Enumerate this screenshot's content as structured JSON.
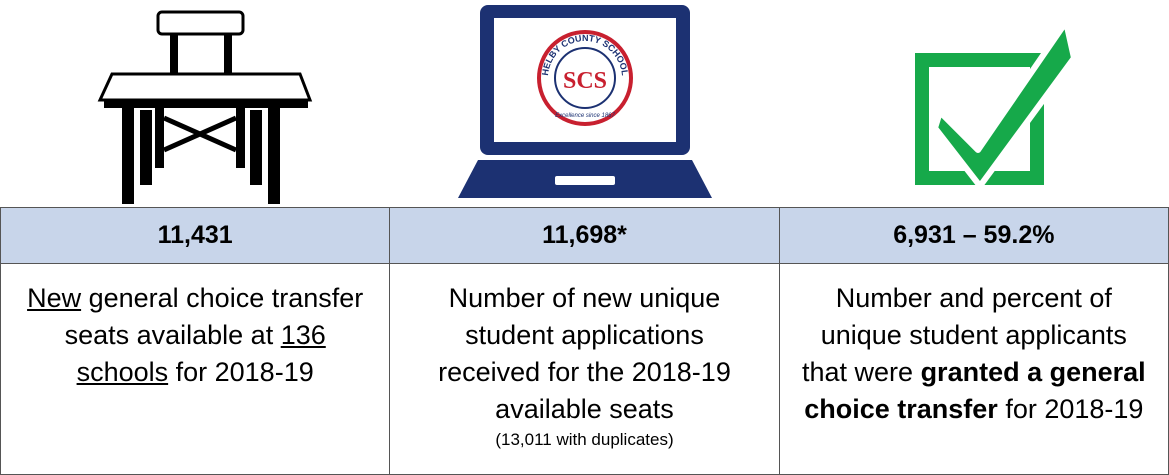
{
  "logo": {
    "ring_text": "SHELBY COUNTY SCHOOLS",
    "initials": "SCS",
    "motto": "Excellence since 1867"
  },
  "columns": [
    {
      "header": "11,431",
      "body": [
        {
          "text": "New",
          "style": "underline"
        },
        {
          "text": " general choice transfer seats available at ",
          "style": "normal"
        },
        {
          "text": "136 schools",
          "style": "underline"
        },
        {
          "text": " for 2018-19",
          "style": "normal"
        }
      ]
    },
    {
      "header": "11,698*",
      "body": [
        {
          "text": "Number of new unique student applications received for the 2018-19 available seats",
          "style": "normal"
        }
      ],
      "note": "(13,011 with duplicates)"
    },
    {
      "header": "6,931 – 59.2%",
      "body": [
        {
          "text": "Number and percent of unique student applicants that were ",
          "style": "normal"
        },
        {
          "text": "granted a general choice transfer",
          "style": "bold"
        },
        {
          "text": " for 2018-19",
          "style": "normal"
        }
      ]
    }
  ]
}
